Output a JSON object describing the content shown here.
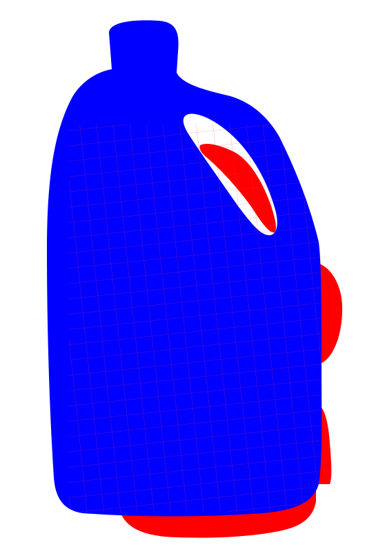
{
  "scene": {
    "background_color": "#ffffff",
    "model_a": {
      "icon": "jug-point-cloud",
      "color": "#0000ff"
    },
    "model_b": {
      "icon": "jug-point-cloud",
      "color": "#ff0000"
    }
  }
}
